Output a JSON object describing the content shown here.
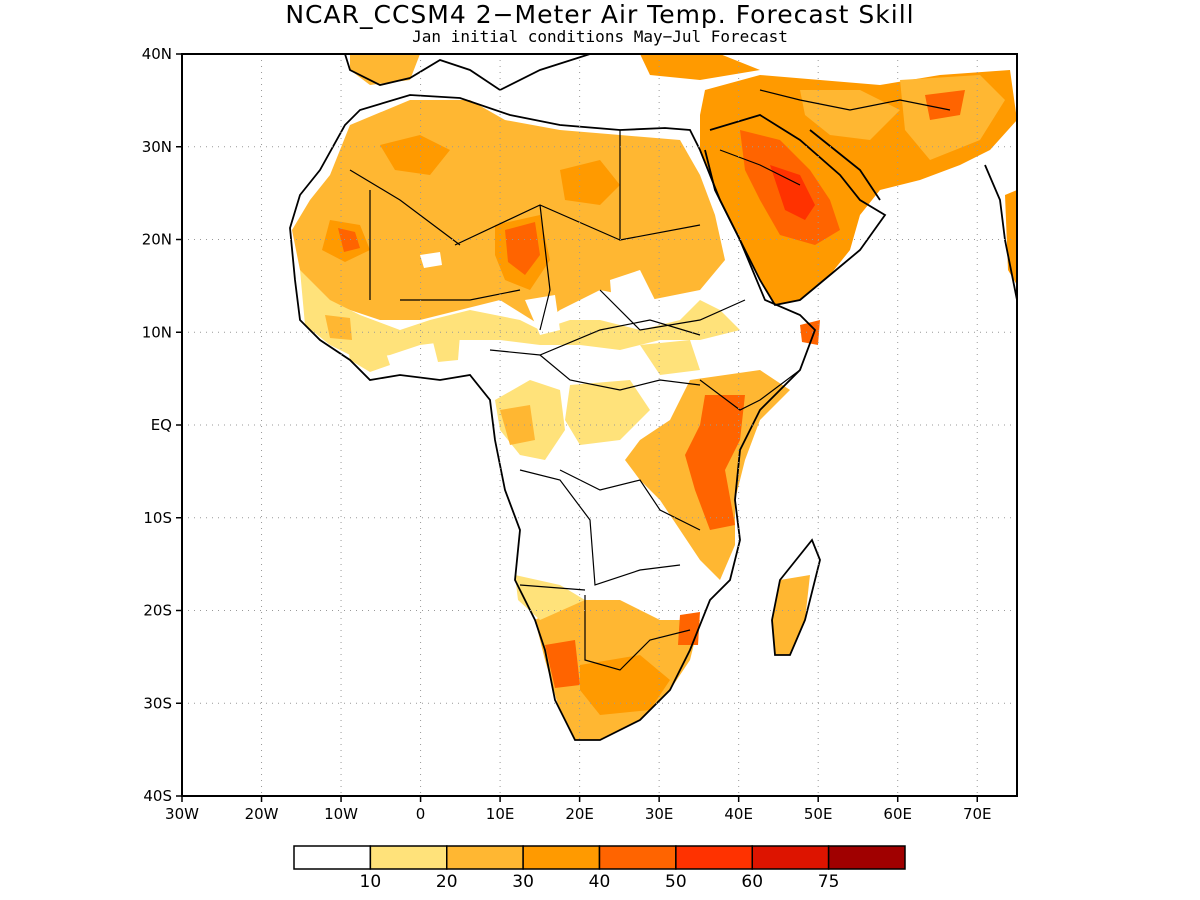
{
  "title": "NCAR_CCSM4 2−Meter Air Temp. Forecast Skill",
  "subtitle": "Jan initial conditions  May−Jul Forecast",
  "map": {
    "lon_labels": [
      "30W",
      "20W",
      "10W",
      "0",
      "10E",
      "20E",
      "30E",
      "40E",
      "50E",
      "60E",
      "70E"
    ],
    "lat_labels": [
      "40N",
      "30N",
      "20N",
      "10N",
      "EQ",
      "10S",
      "20S",
      "30S",
      "40S"
    ],
    "lon_values": [
      -30,
      -20,
      -10,
      0,
      10,
      20,
      30,
      40,
      50,
      60,
      70
    ],
    "lat_values": [
      40,
      30,
      20,
      10,
      0,
      -10,
      -20,
      -30,
      -40
    ],
    "lon_range": [
      -30,
      75
    ],
    "lat_range": [
      -40,
      40
    ],
    "grid": "dotted"
  },
  "colorbar": {
    "colors": [
      "#ffffff",
      "#ffe27a",
      "#ffb732",
      "#ff9a00",
      "#ff6400",
      "#ff3200",
      "#dd1400",
      "#a00000"
    ],
    "labels": [
      "10",
      "20",
      "30",
      "40",
      "50",
      "60",
      "75"
    ]
  }
}
